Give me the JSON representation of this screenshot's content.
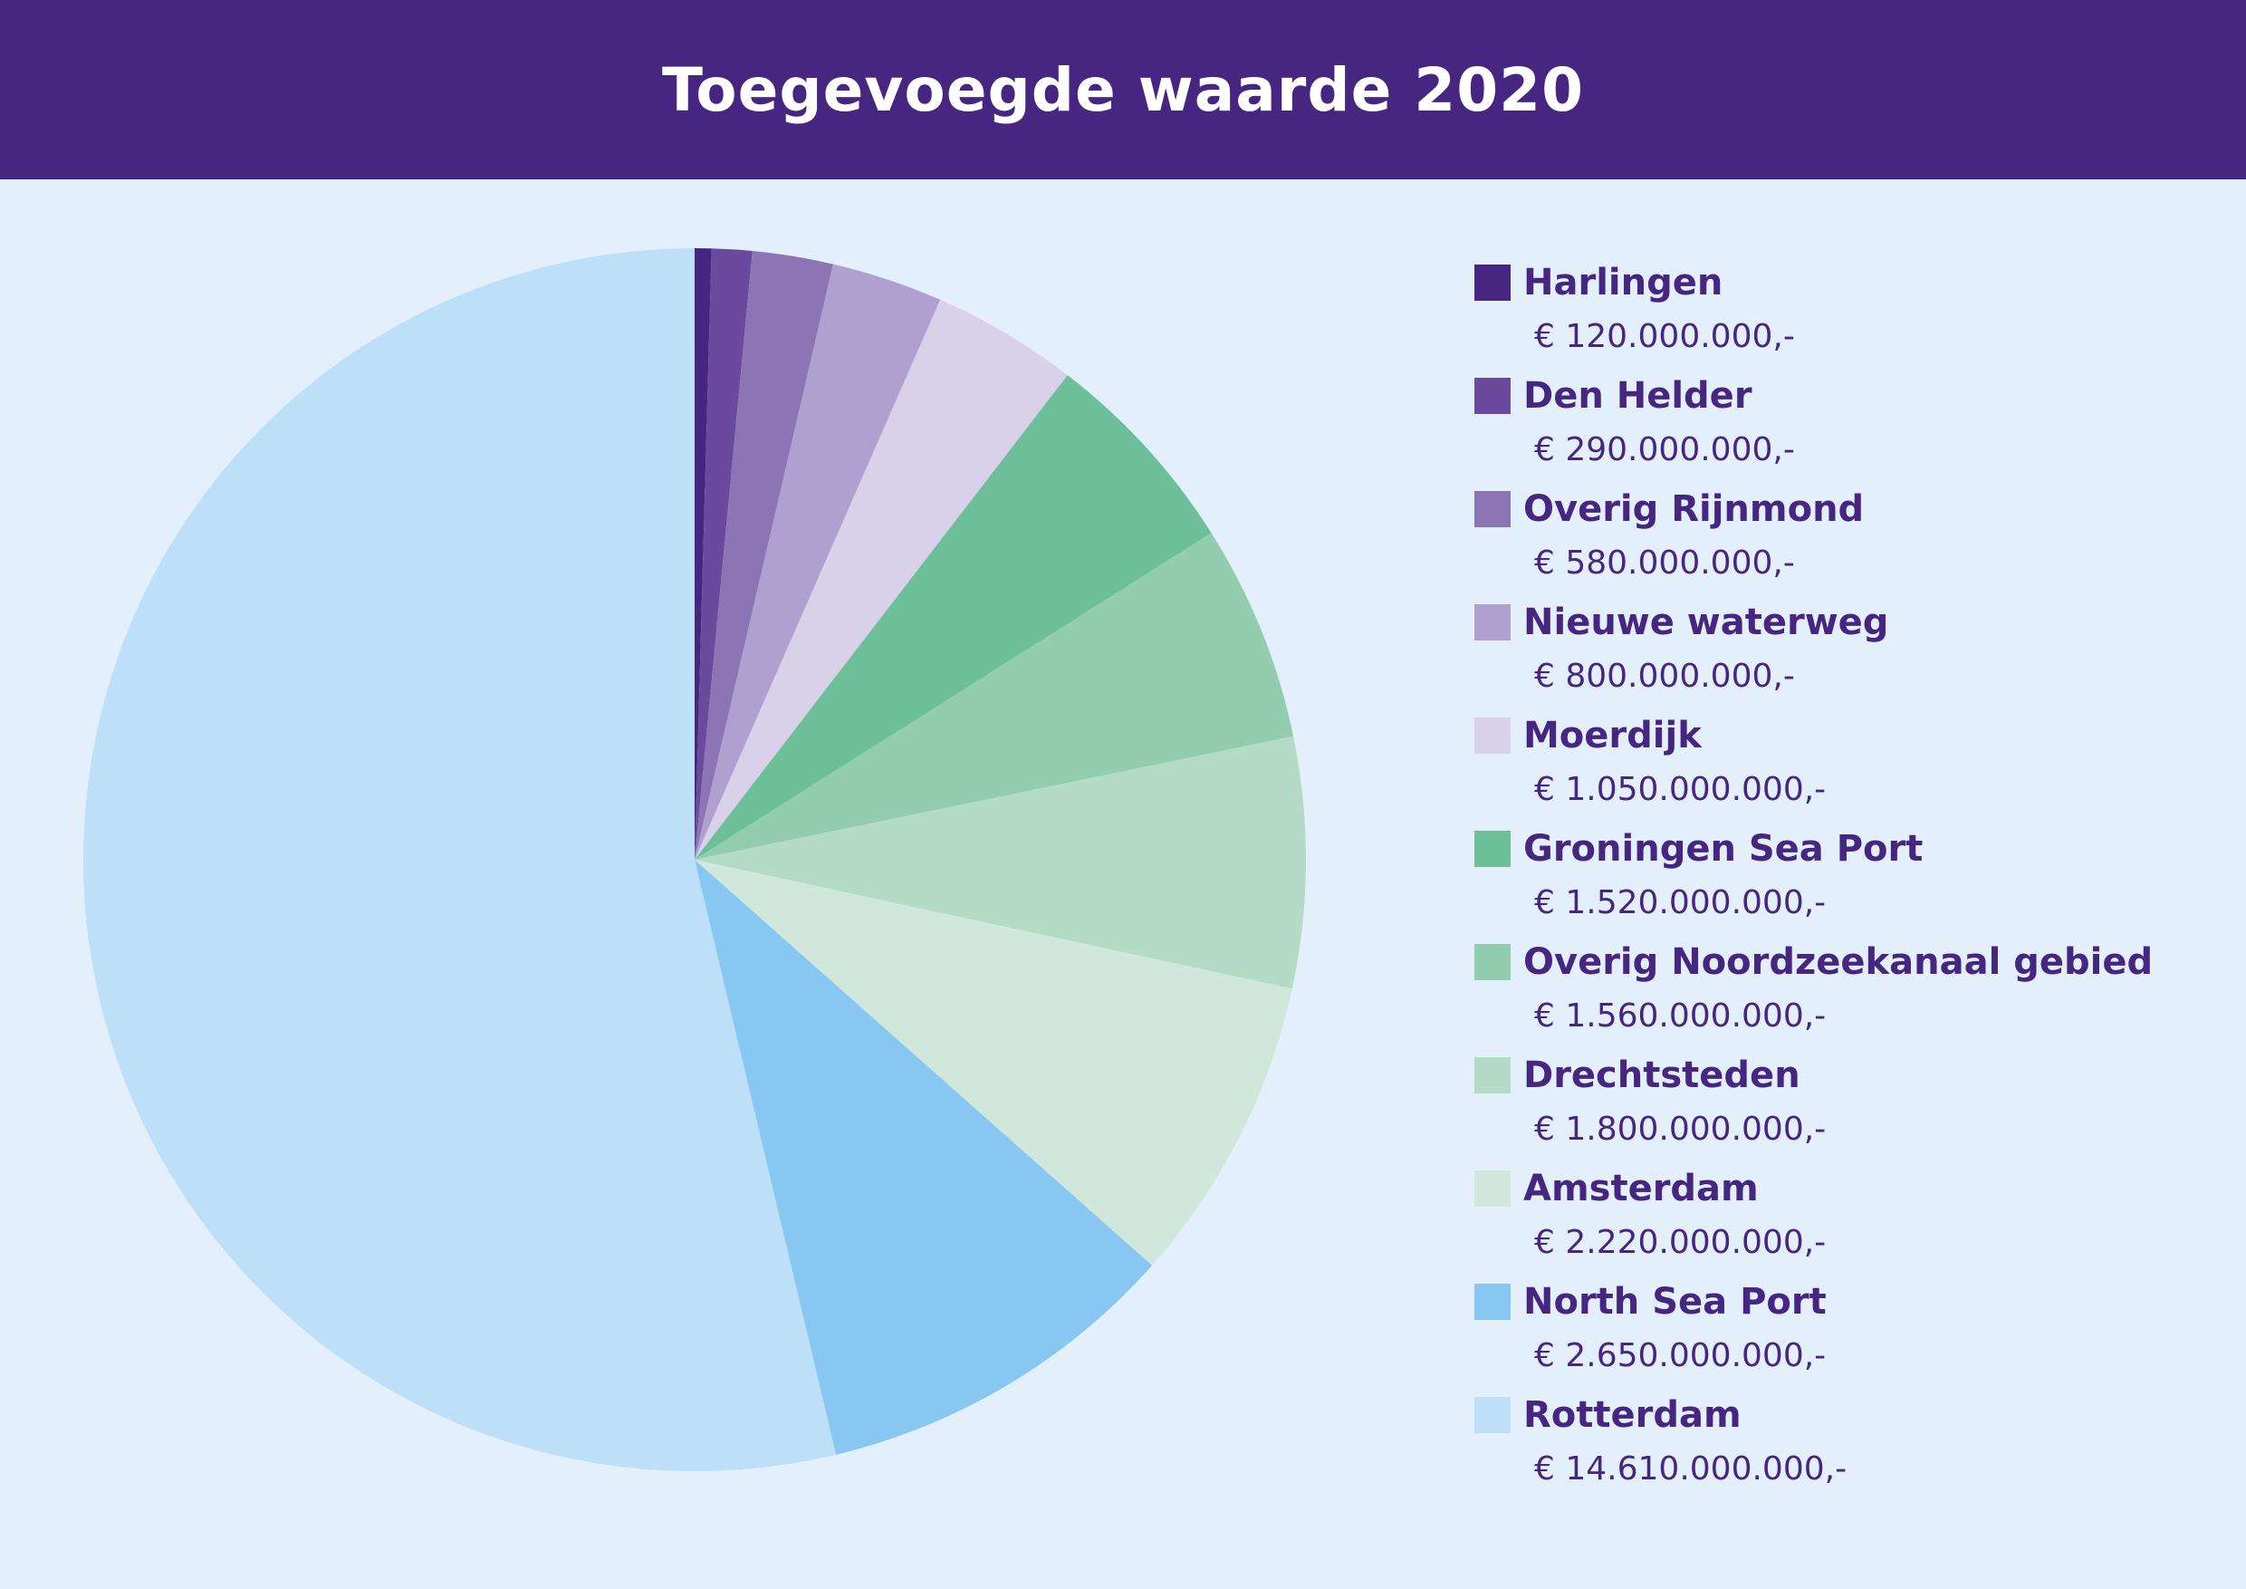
{
  "chart_data": {
    "type": "pie",
    "title": "Toegevoegde waarde 2020",
    "series": [
      {
        "label": "Harlingen",
        "value": 120000000,
        "value_label": "€ 120.000.000,-",
        "color": "#472682"
      },
      {
        "label": "Den Helder",
        "value": 290000000,
        "value_label": "€ 290.000.000,-",
        "color": "#6b4a9e"
      },
      {
        "label": "Overig Rijnmond",
        "value": 580000000,
        "value_label": "€ 580.000.000,-",
        "color": "#8d74b4"
      },
      {
        "label": "Nieuwe waterweg",
        "value": 800000000,
        "value_label": "€ 800.000.000,-",
        "color": "#b0a0cf"
      },
      {
        "label": "Moerdijk",
        "value": 1050000000,
        "value_label": "€ 1.050.000.000,-",
        "color": "#d8d1e9"
      },
      {
        "label": "Groningen Sea Port",
        "value": 1520000000,
        "value_label": "€ 1.520.000.000,-",
        "color": "#6dbf9a"
      },
      {
        "label": "Overig Noordzeekanaal gebied",
        "value": 1560000000,
        "value_label": "€ 1.560.000.000,-",
        "color": "#93cdb0"
      },
      {
        "label": "Drechtsteden",
        "value": 1800000000,
        "value_label": "€ 1.800.000.000,-",
        "color": "#b3dbc6"
      },
      {
        "label": "Amsterdam",
        "value": 2220000000,
        "value_label": "€ 2.220.000.000,-",
        "color": "#d0e8dc"
      },
      {
        "label": "North Sea Port",
        "value": 2650000000,
        "value_label": "€ 2.650.000.000,-",
        "color": "#87c7f1"
      },
      {
        "label": "Rotterdam",
        "value": 14610000000,
        "value_label": "€ 14.610.000.000,-",
        "color": "#bddff7"
      }
    ],
    "legend_position": "right",
    "start_angle": "12 o'clock",
    "direction": "clockwise"
  },
  "colors": {
    "header_bg": "#472682",
    "page_bg": "#e3f0fc",
    "text": "#472682"
  }
}
